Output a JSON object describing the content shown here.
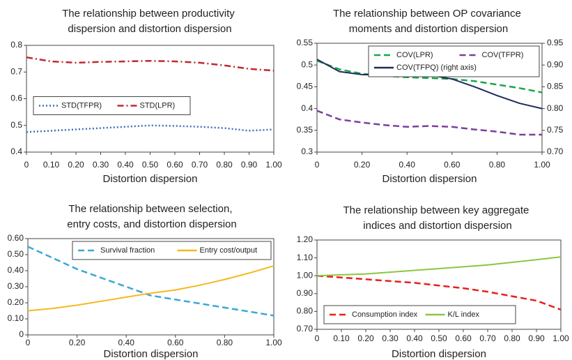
{
  "chart_data": [
    {
      "type": "line",
      "title": "The relationship between productivity dispersion and distortion dispersion",
      "x_label": "Distortion dispersion",
      "x": [
        0,
        0.1,
        0.2,
        0.3,
        0.4,
        0.5,
        0.6,
        0.7,
        0.8,
        0.9,
        1.0
      ],
      "xlim": [
        0,
        1
      ],
      "ylim": [
        0.4,
        0.8
      ],
      "xticks": [
        0,
        {
          "value": 0.1,
          "label": "0.10"
        },
        {
          "value": 0.2,
          "label": "0.20"
        },
        {
          "value": 0.3,
          "label": "0.30"
        },
        {
          "value": 0.4,
          "label": "0.40"
        },
        {
          "value": 0.5,
          "label": "0.50"
        },
        {
          "value": 0.6,
          "label": "0.60"
        },
        {
          "value": 0.7,
          "label": "0.70"
        },
        {
          "value": 0.8,
          "label": "0.80"
        },
        {
          "value": 0.9,
          "label": "0.90"
        },
        {
          "value": 1.0,
          "label": "1.00"
        }
      ],
      "yticks": [
        0.4,
        0.5,
        0.6,
        0.7,
        0.8
      ],
      "grid": false,
      "legend": "center left",
      "series": [
        {
          "name": "STD(TFPR)",
          "color": "#3d6fb6",
          "linestyle": "dotted",
          "values": [
            0.475,
            0.48,
            0.485,
            0.49,
            0.495,
            0.5,
            0.498,
            0.495,
            0.49,
            0.48,
            0.485
          ]
        },
        {
          "name": "STD(LPR)",
          "color": "#c0282d",
          "linestyle": "dashdot",
          "values": [
            0.755,
            0.74,
            0.735,
            0.738,
            0.74,
            0.742,
            0.74,
            0.735,
            0.725,
            0.712,
            0.705
          ]
        }
      ]
    },
    {
      "type": "line",
      "title": "The relationship between OP covariance moments and distortion dispersion",
      "x_label": "Distortion dispersion",
      "x": [
        0,
        0.1,
        0.2,
        0.3,
        0.4,
        0.5,
        0.6,
        0.7,
        0.8,
        0.9,
        1.0
      ],
      "xlim": [
        0,
        1
      ],
      "ylim": [
        0.3,
        0.55
      ],
      "y2lim": [
        0.7,
        0.95
      ],
      "xticks": [
        0,
        {
          "value": 0.2,
          "label": "0.20"
        },
        {
          "value": 0.4,
          "label": "0.40"
        },
        {
          "value": 0.6,
          "label": "0.60"
        },
        {
          "value": 0.8,
          "label": "0.80"
        },
        {
          "value": 1.0,
          "label": "1.00"
        }
      ],
      "yticks": [
        0.3,
        0.35,
        0.4,
        0.45,
        0.5,
        0.55
      ],
      "y2ticks": [
        {
          "value": 0.7,
          "label": "0.70"
        },
        {
          "value": 0.75,
          "label": "0.75"
        },
        {
          "value": 0.8,
          "label": "0.80"
        },
        {
          "value": 0.85,
          "label": "0.85"
        },
        {
          "value": 0.9,
          "label": "0.90"
        },
        {
          "value": 0.95,
          "label": "0.95"
        }
      ],
      "grid": false,
      "legend": "upper right",
      "series": [
        {
          "name": "COV(LPR)",
          "color": "#1aa64b",
          "linestyle": "dashed",
          "values": [
            0.51,
            0.49,
            0.48,
            0.475,
            0.472,
            0.47,
            0.468,
            0.463,
            0.455,
            0.447,
            0.437
          ]
        },
        {
          "name": "COV(TFPR)",
          "color": "#7b3f9e",
          "linestyle": "dashed",
          "values": [
            0.395,
            0.375,
            0.368,
            0.362,
            0.358,
            0.36,
            0.358,
            0.352,
            0.347,
            0.34,
            0.34
          ]
        },
        {
          "name": "COV(TFPQ) (right axis)",
          "color": "#1f2a5c",
          "linestyle": "solid",
          "axis": "y2",
          "values": [
            0.913,
            0.885,
            0.878,
            0.877,
            0.876,
            0.877,
            0.868,
            0.85,
            0.83,
            0.812,
            0.8
          ]
        }
      ]
    },
    {
      "type": "line",
      "title": "The relationship between selection, entry costs, and distortion dispersion",
      "x_label": "Distortion dispersion",
      "x": [
        0,
        0.1,
        0.2,
        0.3,
        0.4,
        0.5,
        0.6,
        0.7,
        0.8,
        0.9,
        1.0
      ],
      "xlim": [
        0,
        1
      ],
      "ylim": [
        0,
        0.6
      ],
      "xticks": [
        0,
        {
          "value": 0.2,
          "label": "0.20"
        },
        {
          "value": 0.4,
          "label": "0.40"
        },
        {
          "value": 0.6,
          "label": "0.60"
        },
        {
          "value": 0.8,
          "label": "0.80"
        },
        {
          "value": 1.0,
          "label": "1.00"
        }
      ],
      "yticks": [
        0,
        {
          "value": 0.1,
          "label": "0.10"
        },
        {
          "value": 0.2,
          "label": "0.20"
        },
        {
          "value": 0.3,
          "label": "0.30"
        },
        {
          "value": 0.4,
          "label": "0.40"
        },
        {
          "value": 0.5,
          "label": "0.50"
        },
        {
          "value": 0.6,
          "label": "0.60"
        }
      ],
      "grid": false,
      "legend": "upper right",
      "series": [
        {
          "name": "Survival fraction",
          "color": "#3aa7d8",
          "linestyle": "dashed",
          "values": [
            0.55,
            0.48,
            0.41,
            0.355,
            0.3,
            0.245,
            0.22,
            0.195,
            0.17,
            0.145,
            0.12
          ]
        },
        {
          "name": "Entry cost/output",
          "color": "#f6b81d",
          "linestyle": "solid",
          "values": [
            0.15,
            0.165,
            0.185,
            0.21,
            0.235,
            0.26,
            0.28,
            0.31,
            0.345,
            0.385,
            0.43
          ]
        }
      ]
    },
    {
      "type": "line",
      "title": "The relationship between key aggregate indices and distortion dispersion",
      "x_label": "Distortion dispersion",
      "x": [
        0,
        0.1,
        0.2,
        0.3,
        0.4,
        0.5,
        0.6,
        0.7,
        0.8,
        0.9,
        1.0
      ],
      "xlim": [
        0,
        1
      ],
      "ylim": [
        0.7,
        1.2
      ],
      "xticks": [
        0,
        {
          "value": 0.1,
          "label": "0.10"
        },
        {
          "value": 0.2,
          "label": "0.20"
        },
        {
          "value": 0.3,
          "label": "0.30"
        },
        {
          "value": 0.4,
          "label": "0.40"
        },
        {
          "value": 0.5,
          "label": "0.50"
        },
        {
          "value": 0.6,
          "label": "0.60"
        },
        {
          "value": 0.7,
          "label": "0.70"
        },
        {
          "value": 0.8,
          "label": "0.80"
        },
        {
          "value": 0.9,
          "label": "0.90"
        },
        {
          "value": 1.0,
          "label": "1.00"
        }
      ],
      "yticks": [
        {
          "value": 0.7,
          "label": "0.70"
        },
        {
          "value": 0.8,
          "label": "0.80"
        },
        {
          "value": 0.9,
          "label": "0.90"
        },
        {
          "value": 1.0,
          "label": "1.00"
        },
        {
          "value": 1.1,
          "label": "1.10"
        },
        {
          "value": 1.2,
          "label": "1.20"
        }
      ],
      "grid": false,
      "legend": "lower left",
      "series": [
        {
          "name": "Consumption index",
          "color": "#e8201c",
          "linestyle": "dashed",
          "values": [
            1.0,
            0.99,
            0.98,
            0.97,
            0.96,
            0.945,
            0.93,
            0.91,
            0.885,
            0.86,
            0.81
          ]
        },
        {
          "name": "K/L index",
          "color": "#8dc63f",
          "linestyle": "solid",
          "values": [
            1.0,
            1.005,
            1.01,
            1.02,
            1.03,
            1.04,
            1.05,
            1.06,
            1.075,
            1.09,
            1.105
          ]
        }
      ]
    }
  ]
}
